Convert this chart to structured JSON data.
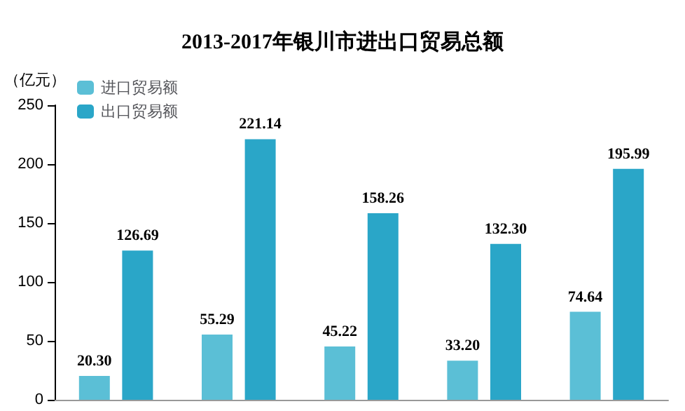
{
  "chart_data": {
    "type": "bar",
    "title": "2013-2017年银川市进出口贸易总额",
    "ylabel": "（亿元）",
    "categories": [
      null,
      null,
      null,
      null,
      null
    ],
    "series": [
      {
        "name": "进口贸易额",
        "color": "#5bbfd6",
        "values": [
          20.3,
          55.29,
          45.22,
          33.2,
          74.64
        ],
        "value_labels": [
          "20.30",
          "55.29",
          "45.22",
          "33.20",
          "74.64"
        ]
      },
      {
        "name": "出口贸易额",
        "color": "#2aa6c8",
        "values": [
          126.69,
          221.14,
          158.26,
          132.3,
          195.99
        ],
        "value_labels": [
          "126.69",
          "221.14",
          "158.26",
          "132.30",
          "195.99"
        ]
      }
    ],
    "ylim": [
      0,
      250
    ],
    "yticks": [
      0,
      50,
      100,
      150,
      200,
      250
    ],
    "grid": false,
    "legend": "top left"
  }
}
